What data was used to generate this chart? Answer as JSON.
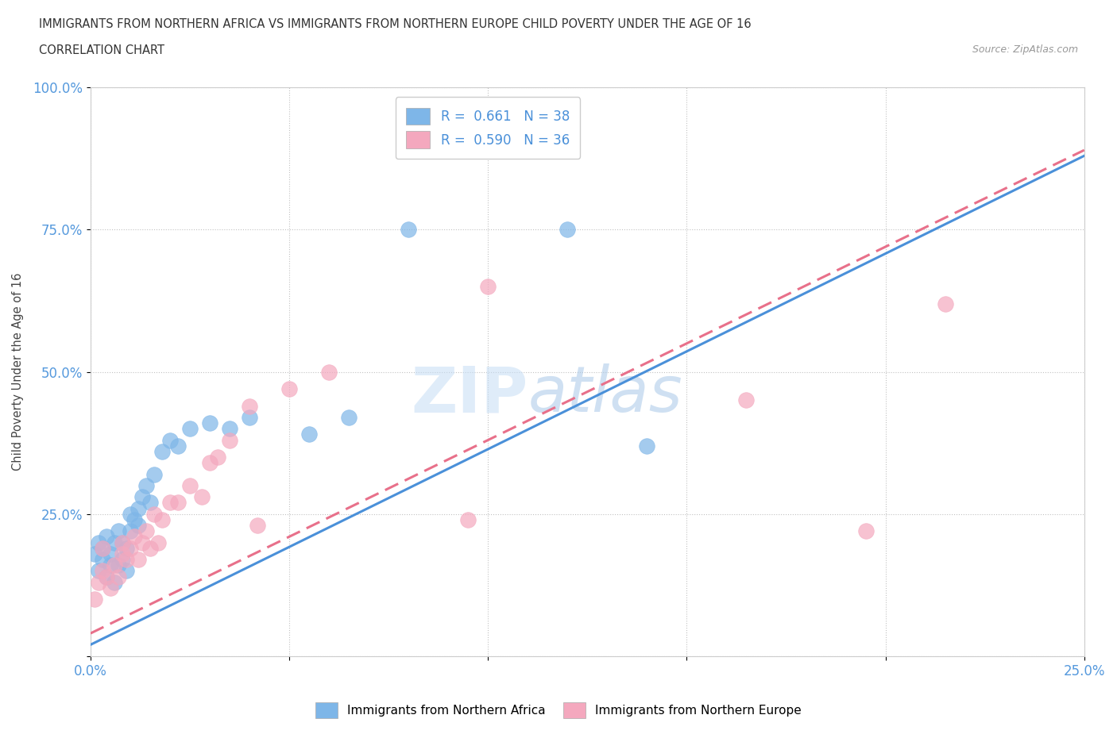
{
  "title": "IMMIGRANTS FROM NORTHERN AFRICA VS IMMIGRANTS FROM NORTHERN EUROPE CHILD POVERTY UNDER THE AGE OF 16",
  "subtitle": "CORRELATION CHART",
  "source": "Source: ZipAtlas.com",
  "ylabel": "Child Poverty Under the Age of 16",
  "blue_label": "Immigrants from Northern Africa",
  "pink_label": "Immigrants from Northern Europe",
  "blue_R": 0.661,
  "blue_N": 38,
  "pink_R": 0.59,
  "pink_N": 36,
  "xlim": [
    0,
    0.25
  ],
  "ylim": [
    0,
    1.0
  ],
  "xticks": [
    0.0,
    0.05,
    0.1,
    0.15,
    0.2,
    0.25
  ],
  "yticks": [
    0.0,
    0.25,
    0.5,
    0.75,
    1.0
  ],
  "xticklabels": [
    "0.0%",
    "",
    "",
    "",
    "",
    "25.0%"
  ],
  "yticklabels": [
    "",
    "25.0%",
    "50.0%",
    "75.0%",
    "100.0%"
  ],
  "blue_color": "#7eb6e8",
  "pink_color": "#f4a8be",
  "blue_line_color": "#4a90d9",
  "pink_line_color": "#e8708a",
  "watermark_left": "ZIP",
  "watermark_right": "atlas",
  "blue_scatter_x": [
    0.001,
    0.002,
    0.002,
    0.003,
    0.003,
    0.004,
    0.004,
    0.005,
    0.005,
    0.006,
    0.006,
    0.007,
    0.007,
    0.008,
    0.008,
    0.009,
    0.009,
    0.01,
    0.01,
    0.011,
    0.012,
    0.012,
    0.013,
    0.014,
    0.015,
    0.016,
    0.018,
    0.02,
    0.022,
    0.025,
    0.03,
    0.035,
    0.04,
    0.055,
    0.065,
    0.08,
    0.12,
    0.14
  ],
  "blue_scatter_y": [
    0.18,
    0.15,
    0.2,
    0.17,
    0.19,
    0.14,
    0.21,
    0.16,
    0.18,
    0.13,
    0.2,
    0.16,
    0.22,
    0.17,
    0.2,
    0.19,
    0.15,
    0.22,
    0.25,
    0.24,
    0.26,
    0.23,
    0.28,
    0.3,
    0.27,
    0.32,
    0.36,
    0.38,
    0.37,
    0.4,
    0.41,
    0.4,
    0.42,
    0.39,
    0.42,
    0.75,
    0.75,
    0.37
  ],
  "pink_scatter_x": [
    0.001,
    0.002,
    0.003,
    0.003,
    0.004,
    0.005,
    0.006,
    0.007,
    0.008,
    0.008,
    0.009,
    0.01,
    0.011,
    0.012,
    0.013,
    0.014,
    0.015,
    0.016,
    0.017,
    0.018,
    0.02,
    0.022,
    0.025,
    0.028,
    0.03,
    0.032,
    0.035,
    0.04,
    0.042,
    0.05,
    0.06,
    0.095,
    0.1,
    0.165,
    0.195,
    0.215
  ],
  "pink_scatter_y": [
    0.1,
    0.13,
    0.15,
    0.19,
    0.14,
    0.12,
    0.16,
    0.14,
    0.18,
    0.2,
    0.17,
    0.19,
    0.21,
    0.17,
    0.2,
    0.22,
    0.19,
    0.25,
    0.2,
    0.24,
    0.27,
    0.27,
    0.3,
    0.28,
    0.34,
    0.35,
    0.38,
    0.44,
    0.23,
    0.47,
    0.5,
    0.24,
    0.65,
    0.45,
    0.22,
    0.62
  ]
}
